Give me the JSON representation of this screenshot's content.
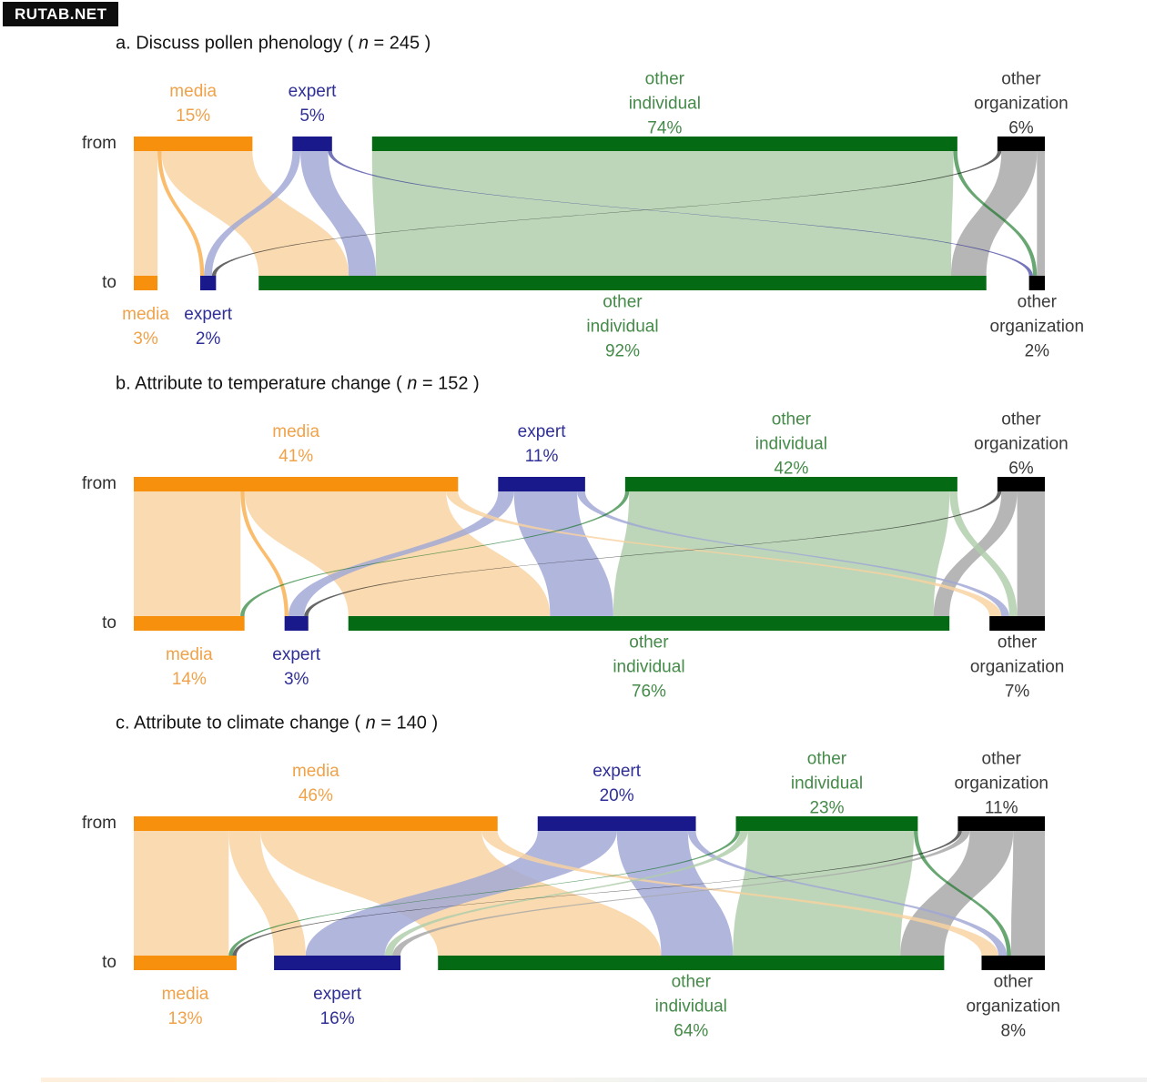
{
  "watermark": "RUTAB.NET",
  "row_labels": {
    "from": "from",
    "to": "to"
  },
  "categories": [
    {
      "id": "media",
      "label_lines": [
        "media"
      ],
      "bar_color": "#F7910D",
      "flow_color": "#F8D2A0",
      "text_color": "#F0A24A"
    },
    {
      "id": "expert",
      "label_lines": [
        "expert"
      ],
      "bar_color": "#19198C",
      "flow_color": "#A0A6D6",
      "text_color": "#2F2F96"
    },
    {
      "id": "other-individual",
      "label_lines": [
        "other",
        "individual"
      ],
      "bar_color": "#046A14",
      "flow_color": "#AECDAA",
      "text_color": "#448A48"
    },
    {
      "id": "other-organization",
      "label_lines": [
        "other",
        "organization"
      ],
      "bar_color": "#000000",
      "flow_color": "#A6A6A6",
      "text_color": "#3A3A3A"
    }
  ],
  "chart_data": [
    {
      "type": "sankey",
      "panel": "a",
      "title_prefix": "a. Discuss pollen phenology ( ",
      "title_var": "n",
      "title_rest": " = 245 )",
      "n": 245,
      "from_pct": [
        15,
        5,
        74,
        6
      ],
      "to_pct": [
        3,
        2,
        92,
        2
      ],
      "flows": [
        [
          0,
          0,
          3
        ],
        [
          0,
          1,
          0.5
        ],
        [
          0,
          2,
          11.5
        ],
        [
          1,
          1,
          1
        ],
        [
          1,
          2,
          3.5
        ],
        [
          1,
          3,
          0.5
        ],
        [
          2,
          2,
          73.5
        ],
        [
          2,
          3,
          0.5
        ],
        [
          3,
          1,
          0.5
        ],
        [
          3,
          2,
          4.5
        ],
        [
          3,
          3,
          1
        ]
      ]
    },
    {
      "type": "sankey",
      "panel": "b",
      "title_prefix": "b. Attribute to temperature change ( ",
      "title_var": "n",
      "title_rest": " = 152 )",
      "n": 152,
      "from_pct": [
        41,
        11,
        42,
        6
      ],
      "to_pct": [
        14,
        3,
        76,
        7
      ],
      "flows": [
        [
          0,
          0,
          13.5
        ],
        [
          0,
          1,
          0.5
        ],
        [
          0,
          2,
          25.5
        ],
        [
          0,
          3,
          1.5
        ],
        [
          1,
          1,
          2
        ],
        [
          1,
          2,
          8
        ],
        [
          1,
          3,
          1
        ],
        [
          2,
          0,
          0.5
        ],
        [
          2,
          2,
          40.5
        ],
        [
          2,
          3,
          1
        ],
        [
          3,
          1,
          0.5
        ],
        [
          3,
          2,
          2
        ],
        [
          3,
          3,
          3.5
        ]
      ]
    },
    {
      "type": "sankey",
      "panel": "c",
      "title_prefix": "c. Attribute to climate change ( ",
      "title_var": "n",
      "title_rest": " = 140 )",
      "n": 140,
      "from_pct": [
        46,
        20,
        23,
        11
      ],
      "to_pct": [
        13,
        16,
        64,
        8
      ],
      "flows": [
        [
          0,
          0,
          12
        ],
        [
          0,
          1,
          4
        ],
        [
          0,
          2,
          28
        ],
        [
          0,
          3,
          2
        ],
        [
          1,
          1,
          10
        ],
        [
          1,
          2,
          9
        ],
        [
          1,
          3,
          1
        ],
        [
          2,
          0,
          0.5
        ],
        [
          2,
          1,
          1
        ],
        [
          2,
          2,
          21
        ],
        [
          2,
          3,
          0.5
        ],
        [
          3,
          0,
          0.5
        ],
        [
          3,
          1,
          1
        ],
        [
          3,
          2,
          5.5
        ],
        [
          3,
          3,
          4
        ]
      ]
    }
  ]
}
